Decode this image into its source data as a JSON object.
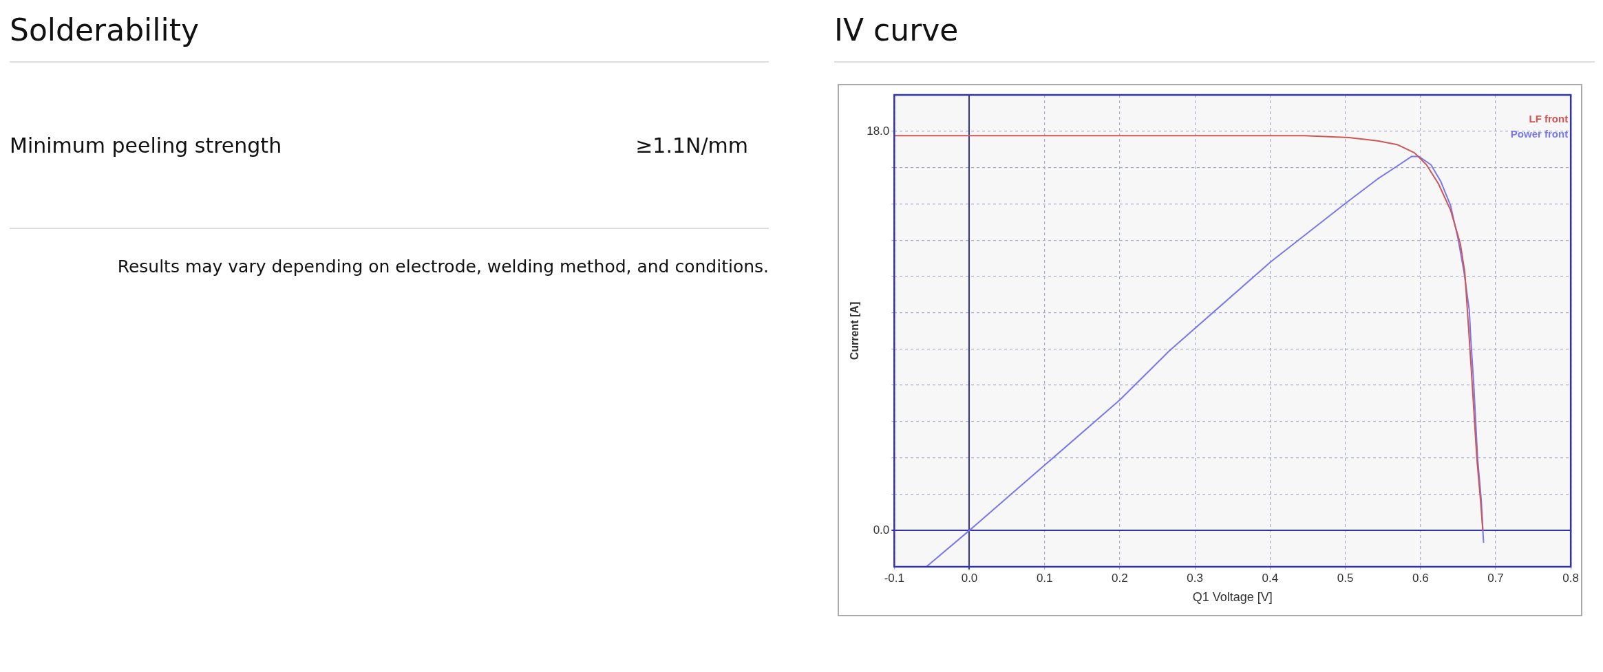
{
  "chart_data": [
    {
      "type": "other",
      "title": "Solderability",
      "annotations": [
        "Minimum peeling strength",
        "≥1.1N/mm",
        "Results may vary depending on electrode, welding method, and conditions."
      ]
    },
    {
      "type": "line",
      "title": "IV curve",
      "xlabel": "Q1 Voltage [V]",
      "ylabel": "Current [A]",
      "xlim": [
        -0.1,
        0.8
      ],
      "xticks": [
        -0.1,
        {
          "value": 0,
          "label": "0.0"
        },
        0.1,
        0.2,
        0.3,
        0.4,
        0.5,
        0.6,
        0.7,
        0.8
      ],
      "ylim": [
        -1.64,
        19.64
      ],
      "yticks": [
        {
          "value": 0,
          "label": "0.0"
        },
        {
          "value": 1.64,
          "label": null
        },
        {
          "value": 3.27,
          "label": null
        },
        {
          "value": 4.91,
          "label": null
        },
        {
          "value": 6.55,
          "label": null
        },
        {
          "value": 8.18,
          "label": null
        },
        {
          "value": 9.82,
          "label": null
        },
        {
          "value": 11.45,
          "label": null
        },
        {
          "value": 13.09,
          "label": null
        },
        {
          "value": 14.73,
          "label": null
        },
        {
          "value": 16.36,
          "label": null
        },
        {
          "value": 18,
          "label": "18.0"
        }
      ],
      "grid": true,
      "legend": "top right",
      "marker": "none",
      "line_style": "solid",
      "series": [
        {
          "name": "LF front",
          "color": "#d05555",
          "x": [
            -0.1,
            0.2,
            0.446,
            0.505,
            0.543,
            0.569,
            0.592,
            0.608,
            0.624,
            0.64,
            0.653,
            0.659,
            0.665,
            0.669,
            0.675,
            0.68,
            0.683
          ],
          "values": [
            17.8,
            17.8,
            17.8,
            17.72,
            17.57,
            17.4,
            17.03,
            16.49,
            15.63,
            14.45,
            12.94,
            11.65,
            8.63,
            6.53,
            3.26,
            1.33,
            0
          ]
        },
        {
          "name": "Power front",
          "color": "#7777ee",
          "x": [
            -0.057,
            0,
            0.1,
            0.2,
            0.266,
            0.401,
            0.501,
            0.543,
            0.569,
            0.588,
            0.598,
            0.614,
            0.627,
            0.64,
            0.65,
            0.658,
            0.665,
            0.667,
            0.671,
            0.676,
            0.681,
            0.683,
            0.684
          ],
          "values": [
            -1.63,
            0,
            2.94,
            5.88,
            8.1,
            12.12,
            14.77,
            15.85,
            16.43,
            16.86,
            16.86,
            16.49,
            15.74,
            14.66,
            13.16,
            11.65,
            9.93,
            8.63,
            6.53,
            3.26,
            1.33,
            0,
            -0.56
          ]
        }
      ]
    }
  ]
}
